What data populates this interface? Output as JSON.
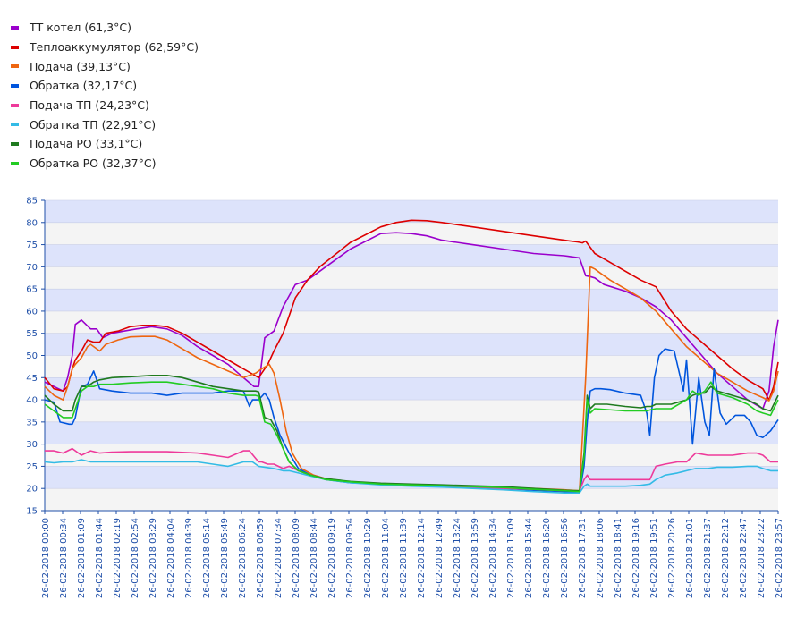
{
  "chart_data": {
    "type": "line",
    "title": "",
    "xlabel": "",
    "ylabel": "",
    "ylim": [
      15,
      85
    ],
    "yticks": [
      15,
      20,
      25,
      30,
      35,
      40,
      45,
      50,
      55,
      60,
      65,
      70,
      75,
      80,
      85
    ],
    "grid": true,
    "legend_position": "top-left",
    "band_colors": [
      "#dde3fb",
      "#f4f4f4"
    ],
    "tick_color": "#1f4fa8",
    "axis_color": "#1f4fa8",
    "x_tick_labels": [
      "26-02-2018 00:00",
      "26-02-2018 00:34",
      "26-02-2018 01:09",
      "26-02-2018 01:44",
      "26-02-2018 02:19",
      "26-02-2018 02:54",
      "26-02-2018 03:29",
      "26-02-2018 04:04",
      "26-02-2018 04:39",
      "26-02-2018 05:14",
      "26-02-2018 05:49",
      "26-02-2018 06:24",
      "26-02-2018 06:59",
      "26-02-2018 07:34",
      "26-02-2018 08:09",
      "26-02-2018 08:44",
      "26-02-2018 09:19",
      "26-02-2018 09:54",
      "26-02-2018 10:29",
      "26-02-2018 11:04",
      "26-02-2018 11:39",
      "26-02-2018 12:14",
      "26-02-2018 12:49",
      "26-02-2018 13:24",
      "26-02-2018 13:59",
      "26-02-2018 14:34",
      "26-02-2018 15:09",
      "26-02-2018 15:44",
      "26-02-2018 16:20",
      "26-02-2018 16:56",
      "26-02-2018 17:31",
      "26-02-2018 18:06",
      "26-02-2018 18:41",
      "26-02-2018 19:16",
      "26-02-2018 19:51",
      "26-02-2018 20:26",
      "26-02-2018 21:01",
      "26-02-2018 21:37",
      "26-02-2018 22:12",
      "26-02-2018 22:47",
      "26-02-2018 23:22",
      "26-02-2018 23:57"
    ],
    "x_hours_start": 0,
    "x_hours_end": 24,
    "series": [
      {
        "name": "ТТ котел (61,3°C)",
        "color": "#9a00cc",
        "x": [
          0,
          0.3,
          0.6,
          0.75,
          0.9,
          1.0,
          1.2,
          1.5,
          1.7,
          1.9,
          2.2,
          2.6,
          3.0,
          3.5,
          4.0,
          4.5,
          5.0,
          5.5,
          6.0,
          6.5,
          6.85,
          7.0,
          7.2,
          7.5,
          7.8,
          8.2,
          8.6,
          9.0,
          10.0,
          11.0,
          11.5,
          12.0,
          12.5,
          13.0,
          14.0,
          15.0,
          16.0,
          17.0,
          17.5,
          17.7,
          17.85,
          18.0,
          18.3,
          19.0,
          19.5,
          20.0,
          20.5,
          21.0,
          21.5,
          22.0,
          22.5,
          23.0,
          23.5,
          23.7,
          23.85,
          24.0
        ],
        "y": [
          44,
          43,
          42,
          45,
          50,
          57,
          58,
          56,
          56,
          54,
          55,
          55.5,
          56,
          56.5,
          56,
          54.5,
          52,
          50,
          48,
          45,
          43,
          43,
          54,
          55.5,
          61,
          66,
          67,
          69,
          74,
          77.5,
          77.7,
          77.5,
          77,
          76,
          75,
          74,
          73,
          72.5,
          72,
          68,
          67.8,
          67.5,
          66,
          64.5,
          63,
          61,
          58,
          54,
          50,
          46,
          43,
          40,
          38,
          42,
          52,
          58
        ]
      },
      {
        "name": "Теплоаккумулятор (62,59°C)",
        "color": "#dd0000",
        "x": [
          0,
          0.3,
          0.6,
          0.75,
          0.9,
          1.0,
          1.2,
          1.4,
          1.6,
          1.8,
          2.0,
          2.4,
          2.8,
          3.2,
          3.6,
          4.0,
          4.5,
          5.0,
          5.5,
          6.0,
          6.5,
          7.0,
          7.3,
          7.5,
          7.8,
          8.2,
          8.6,
          9.0,
          10.0,
          11.0,
          11.5,
          12.0,
          12.5,
          13.0,
          14.0,
          15.0,
          16.0,
          17.0,
          17.45,
          17.6,
          17.7,
          18.0,
          18.5,
          19.0,
          19.5,
          20.0,
          20.5,
          21.0,
          21.5,
          22.0,
          22.5,
          23.0,
          23.5,
          23.7,
          23.85,
          24.0
        ],
        "y": [
          45,
          42.5,
          42,
          43,
          47,
          49,
          51,
          53.5,
          53,
          53,
          55,
          55.5,
          56.5,
          56.8,
          56.8,
          56.5,
          55,
          53,
          51,
          49,
          47,
          45,
          48,
          51,
          55,
          63,
          67,
          70,
          75.5,
          79,
          80,
          80.5,
          80.4,
          80,
          79,
          78,
          77,
          76,
          75.6,
          75.4,
          75.8,
          73,
          71,
          69,
          67,
          65.5,
          60,
          56,
          53,
          50,
          47,
          44.5,
          42.5,
          40,
          43,
          48.5
        ]
      },
      {
        "name": "Подача (39,13°C)",
        "color": "#ee6610",
        "x": [
          0,
          0.3,
          0.6,
          0.75,
          0.9,
          1.0,
          1.2,
          1.4,
          1.5,
          1.6,
          1.8,
          2.0,
          2.4,
          2.8,
          3.2,
          3.6,
          4.0,
          4.5,
          5.0,
          5.5,
          6.0,
          6.5,
          6.9,
          7.1,
          7.35,
          7.5,
          7.7,
          7.9,
          8.1,
          8.4,
          8.8,
          9.2,
          10.0,
          11.0,
          12.0,
          13.0,
          14.0,
          15.0,
          16.0,
          17.0,
          17.5,
          17.7,
          17.85,
          18.0,
          18.2,
          18.5,
          19.0,
          19.5,
          20.0,
          20.5,
          21.0,
          21.5,
          22.0,
          22.5,
          23.0,
          23.5,
          23.7,
          23.85,
          24.0
        ],
        "y": [
          43,
          41,
          40,
          43,
          47,
          48,
          49.5,
          52,
          52.5,
          52,
          51,
          52.5,
          53.5,
          54.2,
          54.3,
          54.3,
          53.5,
          51.5,
          49.5,
          48,
          46.5,
          45,
          46,
          47,
          48,
          46,
          40,
          33,
          28,
          24.5,
          23,
          22.2,
          21.5,
          21,
          20.8,
          20.6,
          20.4,
          20.2,
          20,
          19.7,
          19.5,
          45,
          70,
          69.5,
          68.5,
          67,
          65,
          63,
          60,
          56,
          52,
          49,
          46,
          44,
          42,
          40.5,
          39.8,
          42,
          46.5
        ]
      },
      {
        "name": "Обратка (32,17°C)",
        "color": "#0055dd",
        "x": [
          0,
          0.3,
          0.5,
          0.8,
          0.9,
          1.0,
          1.2,
          1.4,
          1.6,
          1.8,
          2.2,
          2.8,
          3.5,
          4.0,
          4.5,
          5.0,
          5.5,
          6.0,
          6.5,
          6.7,
          6.8,
          7.0,
          7.2,
          7.35,
          7.5,
          7.7,
          8.0,
          8.3,
          8.7,
          9.2,
          10.0,
          11.0,
          12.0,
          13.0,
          14.0,
          15.0,
          16.0,
          17.0,
          17.5,
          17.65,
          17.75,
          17.85,
          18.0,
          18.2,
          18.5,
          19.0,
          19.5,
          19.7,
          19.8,
          19.95,
          20.1,
          20.3,
          20.6,
          20.9,
          21.0,
          21.2,
          21.4,
          21.6,
          21.75,
          21.9,
          22.1,
          22.3,
          22.6,
          22.9,
          23.1,
          23.3,
          23.5,
          23.75,
          24.0
        ],
        "y": [
          40,
          39.5,
          35,
          34.5,
          34.5,
          36,
          43,
          43.5,
          46.5,
          42.5,
          42,
          41.5,
          41.5,
          41,
          41.5,
          41.5,
          41.5,
          42,
          42,
          38.5,
          40,
          40,
          41.5,
          40,
          36,
          32,
          28,
          24.5,
          23,
          22,
          21.3,
          21,
          20.6,
          20.4,
          20.2,
          20,
          19.6,
          19.3,
          19,
          25,
          35,
          42,
          42.5,
          42.5,
          42.3,
          41.5,
          41,
          37,
          32,
          45,
          50,
          51.5,
          51,
          42,
          49,
          30,
          45,
          35,
          32,
          47,
          37,
          34.5,
          36.5,
          36.5,
          35,
          32,
          31.5,
          33,
          35.5
        ]
      },
      {
        "name": "Подача ТП (24,23°C)",
        "color": "#ee3a9a",
        "x": [
          0,
          0.3,
          0.6,
          0.9,
          1.2,
          1.5,
          1.8,
          2.2,
          2.8,
          3.5,
          4.0,
          5.0,
          5.5,
          6.0,
          6.5,
          6.7,
          6.9,
          7.0,
          7.1,
          7.3,
          7.5,
          7.8,
          8.0,
          8.3,
          8.7,
          9.2,
          10.0,
          11.0,
          12.0,
          13.0,
          14.0,
          15.0,
          16.0,
          17.0,
          17.5,
          17.65,
          17.75,
          17.85,
          18.0,
          18.4,
          19.0,
          19.5,
          19.8,
          20.0,
          20.3,
          20.7,
          21.0,
          21.3,
          21.7,
          22.0,
          22.5,
          23.0,
          23.3,
          23.5,
          23.75,
          24.0
        ],
        "y": [
          28.5,
          28.5,
          28,
          29,
          27.5,
          28.5,
          28,
          28.2,
          28.3,
          28.3,
          28.3,
          28,
          27.5,
          27,
          28.5,
          28.5,
          26.8,
          26,
          26,
          25.5,
          25.5,
          24.5,
          25,
          24,
          23,
          22.2,
          21.5,
          21,
          20.7,
          20.5,
          20.3,
          20,
          19.8,
          19.5,
          19.5,
          22,
          23,
          22,
          22,
          22,
          22,
          22,
          22,
          25,
          25.5,
          26,
          26,
          28,
          27.5,
          27.5,
          27.5,
          28,
          28,
          27.5,
          26,
          26
        ]
      },
      {
        "name": "Обратка ТП (22,91°C)",
        "color": "#33bbe6",
        "x": [
          0,
          0.3,
          0.6,
          0.9,
          1.2,
          1.5,
          1.8,
          2.2,
          2.8,
          3.5,
          4.0,
          5.0,
          5.5,
          6.0,
          6.5,
          6.8,
          7.0,
          7.2,
          7.5,
          7.8,
          8.0,
          8.3,
          8.7,
          9.2,
          10.0,
          11.0,
          12.0,
          13.0,
          14.0,
          15.0,
          16.0,
          17.0,
          17.5,
          17.65,
          17.75,
          17.85,
          18.0,
          18.4,
          19.0,
          19.5,
          19.8,
          20.0,
          20.3,
          20.7,
          21.0,
          21.3,
          21.7,
          22.0,
          22.5,
          23.0,
          23.3,
          23.5,
          23.75,
          24.0
        ],
        "y": [
          26,
          25.8,
          26,
          26,
          26.5,
          26,
          26,
          26,
          26,
          26,
          26,
          26,
          25.5,
          25,
          26,
          26,
          25,
          24.8,
          24.5,
          24,
          24,
          23.5,
          22.8,
          22,
          21.3,
          20.8,
          20.5,
          20.3,
          20,
          19.7,
          19.3,
          19,
          19,
          20.5,
          21,
          20.5,
          20.5,
          20.5,
          20.5,
          20.7,
          21,
          22,
          23,
          23.5,
          24,
          24.5,
          24.5,
          24.8,
          24.8,
          25,
          25,
          24.5,
          24,
          24
        ]
      },
      {
        "name": "Подача РО (33,1°C)",
        "color": "#1f7a1f",
        "x": [
          0,
          0.3,
          0.6,
          0.9,
          1.0,
          1.2,
          1.4,
          1.6,
          1.8,
          2.2,
          2.8,
          3.5,
          4.0,
          4.5,
          5.0,
          5.5,
          6.0,
          6.5,
          6.7,
          6.9,
          7.0,
          7.2,
          7.4,
          7.6,
          7.8,
          8.0,
          8.3,
          8.7,
          9.2,
          10.0,
          11.0,
          12.0,
          13.0,
          14.0,
          15.0,
          16.0,
          17.0,
          17.5,
          17.65,
          17.75,
          17.85,
          18.0,
          18.4,
          19.0,
          19.5,
          19.7,
          19.85,
          20.0,
          20.5,
          21.0,
          21.2,
          21.4,
          21.6,
          21.8,
          22.0,
          22.5,
          23.0,
          23.3,
          23.5,
          23.75,
          24.0
        ],
        "y": [
          41,
          39,
          37.5,
          37.5,
          40,
          43,
          43,
          44,
          44.5,
          45,
          45.2,
          45.5,
          45.5,
          45,
          44,
          43,
          42.5,
          42,
          42,
          42,
          41.8,
          36,
          35.5,
          33,
          29,
          26,
          24,
          23,
          22.2,
          21.6,
          21.2,
          21,
          20.8,
          20.6,
          20.4,
          20,
          19.6,
          19.5,
          28,
          41,
          38,
          39,
          39,
          38.5,
          38.2,
          38.5,
          38.5,
          39,
          39,
          40,
          41,
          41.5,
          41.5,
          43,
          42,
          41,
          40,
          39,
          38,
          37.5,
          41
        ]
      },
      {
        "name": "Обратка РО (32,37°C)",
        "color": "#22cc22",
        "x": [
          0,
          0.3,
          0.6,
          0.9,
          1.0,
          1.2,
          1.4,
          1.6,
          1.8,
          2.2,
          2.8,
          3.5,
          4.0,
          4.5,
          5.0,
          5.5,
          6.0,
          6.5,
          6.7,
          6.9,
          7.0,
          7.2,
          7.4,
          7.6,
          7.8,
          8.0,
          8.3,
          8.7,
          9.2,
          10.0,
          11.0,
          12.0,
          13.0,
          14.0,
          15.0,
          16.0,
          17.0,
          17.5,
          17.65,
          17.75,
          17.85,
          18.0,
          18.4,
          19.0,
          19.5,
          19.7,
          19.85,
          20.0,
          20.5,
          21.0,
          21.2,
          21.4,
          21.6,
          21.8,
          22.0,
          22.5,
          23.0,
          23.3,
          23.5,
          23.75,
          24.0
        ],
        "y": [
          39,
          37.5,
          36,
          36,
          38,
          42,
          43,
          43,
          43.5,
          43.5,
          43.8,
          44,
          44,
          43.5,
          43,
          42.5,
          41.5,
          41,
          41,
          41,
          40.8,
          35,
          34.5,
          32,
          29,
          26,
          24,
          23,
          22,
          21.5,
          21,
          20.8,
          20.6,
          20.4,
          20.2,
          19.8,
          19.5,
          19.3,
          27,
          40,
          37,
          38,
          37.8,
          37.5,
          37.5,
          37.5,
          37.8,
          38,
          38,
          40,
          42,
          41,
          42,
          44,
          41.5,
          40.5,
          39,
          37.5,
          37,
          36.5,
          40
        ]
      }
    ]
  }
}
